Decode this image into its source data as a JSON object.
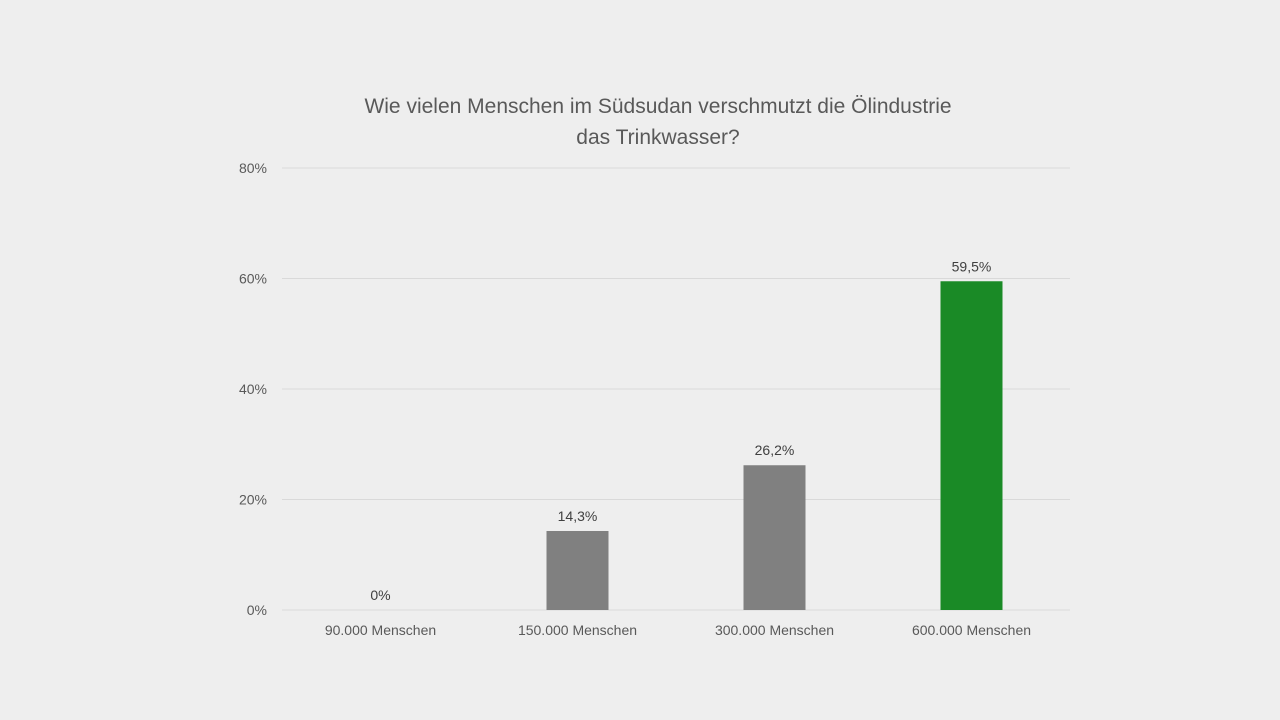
{
  "chart_data": {
    "type": "bar",
    "title_lines": [
      "Wie vielen Menschen im Südsudan verschmutzt die Ölindustrie",
      "das Trinkwasser?"
    ],
    "categories": [
      "90.000 Menschen",
      "150.000 Menschen",
      "300.000 Menschen",
      "600.000 Menschen"
    ],
    "values": [
      0,
      14.3,
      26.2,
      59.5
    ],
    "data_labels": [
      "0%",
      "14,3%",
      "26,2%",
      "59,5%"
    ],
    "y_ticks": [
      0,
      20,
      40,
      60,
      80
    ],
    "y_tick_labels": [
      "0%",
      "20%",
      "40%",
      "60%",
      "80%"
    ],
    "ylim": [
      0,
      80
    ],
    "grid": true,
    "legend": "none",
    "bar_colors": [
      "#808080",
      "#808080",
      "#808080",
      "#1a8a26"
    ]
  }
}
